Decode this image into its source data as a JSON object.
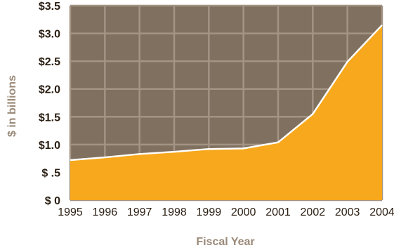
{
  "chart_data": {
    "type": "area",
    "title": "",
    "xlabel": "Fiscal Year",
    "ylabel": "$ in billions",
    "x": [
      "1995",
      "1996",
      "1997",
      "1998",
      "1999",
      "2000",
      "2001",
      "2002",
      "2003",
      "2004"
    ],
    "series": [
      {
        "values": [
          0.72,
          0.77,
          0.83,
          0.87,
          0.92,
          0.93,
          1.04,
          1.55,
          2.49,
          3.15
        ]
      }
    ],
    "yticks": [
      {
        "value": 0,
        "label": "$  0"
      },
      {
        "value": 0.5,
        "label": "$  .5"
      },
      {
        "value": 1.0,
        "label": "$1.0"
      },
      {
        "value": 1.5,
        "label": "$1.5"
      },
      {
        "value": 2.0,
        "label": "$2.0"
      },
      {
        "value": 2.5,
        "label": "$2.5"
      },
      {
        "value": 3.0,
        "label": "$3.0"
      },
      {
        "value": 3.5,
        "label": "$3.5"
      }
    ],
    "ylim": [
      0,
      3.5
    ],
    "grid": true,
    "colors": {
      "background": "#80705f",
      "grid": "#a39485",
      "area": "#f7a81c",
      "area_edge": "#ffffff",
      "tick_text": "#2a1e12",
      "axis_title": "#9b8a79"
    }
  }
}
